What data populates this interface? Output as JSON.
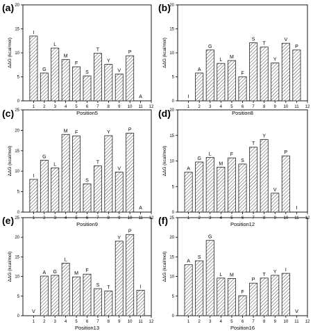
{
  "chart_data": [
    {
      "type": "bar",
      "panel_label": "(a)",
      "xlabel": "Position5",
      "ylabel": "ΔΔG (kcal/mol)",
      "x": [
        1,
        2,
        3,
        4,
        5,
        6,
        7,
        8,
        9,
        10,
        11
      ],
      "labels": [
        "I",
        "G",
        "L",
        "M",
        "F",
        "S",
        "T",
        "Y",
        "V",
        "P",
        "A"
      ],
      "values": [
        13.5,
        5.8,
        11.0,
        8.6,
        7.1,
        5.2,
        9.9,
        7.6,
        5.6,
        9.4,
        0
      ],
      "xlim": [
        0,
        12
      ],
      "ylim": [
        0,
        20
      ],
      "xticks": [
        1,
        2,
        3,
        4,
        5,
        6,
        7,
        8,
        9,
        10,
        11,
        12
      ],
      "yticks": [
        0,
        5,
        10,
        15,
        20
      ]
    },
    {
      "type": "bar",
      "panel_label": "(b)",
      "xlabel": "Position8",
      "ylabel": "ΔΔG (kcal/mol)",
      "x": [
        1,
        2,
        3,
        4,
        5,
        6,
        7,
        8,
        9,
        10,
        11
      ],
      "labels": [
        "I",
        "A",
        "G",
        "L",
        "M",
        "F",
        "S",
        "T",
        "Y",
        "V",
        "P"
      ],
      "values": [
        0,
        5.8,
        10.6,
        7.8,
        8.4,
        5.0,
        12.1,
        11.2,
        7.9,
        12.0,
        10.6
      ],
      "xlim": [
        0,
        12
      ],
      "ylim": [
        0,
        20
      ],
      "xticks": [
        1,
        2,
        3,
        4,
        5,
        6,
        7,
        8,
        9,
        10,
        11,
        12
      ],
      "yticks": [
        0,
        5,
        10,
        15,
        20
      ]
    },
    {
      "type": "bar",
      "panel_label": "(c)",
      "xlabel": "Position9",
      "ylabel": "ΔΔG (kcal/mol)",
      "x": [
        1,
        2,
        3,
        4,
        5,
        6,
        7,
        8,
        9,
        10,
        11
      ],
      "labels": [
        "I",
        "G",
        "L",
        "M",
        "F",
        "S",
        "T",
        "Y",
        "V",
        "P",
        "A"
      ],
      "values": [
        8.0,
        12.7,
        10.8,
        19.0,
        18.6,
        6.9,
        11.3,
        18.7,
        9.8,
        19.3,
        0
      ],
      "xlim": [
        0,
        12
      ],
      "ylim": [
        0,
        25
      ],
      "xticks": [
        1,
        2,
        3,
        4,
        5,
        6,
        7,
        8,
        9,
        10,
        11,
        12
      ],
      "yticks": [
        0,
        5,
        10,
        15,
        20,
        25
      ]
    },
    {
      "type": "bar",
      "panel_label": "(d)",
      "xlabel": "Position12",
      "ylabel": "ΔΔG (kcal/mol)",
      "x": [
        1,
        2,
        3,
        4,
        5,
        6,
        7,
        8,
        9,
        10,
        11
      ],
      "labels": [
        "A",
        "G",
        "L",
        "M",
        "F",
        "S",
        "T",
        "Y",
        "V",
        "P",
        "I"
      ],
      "values": [
        7.8,
        9.8,
        10.7,
        8.8,
        10.6,
        9.4,
        12.7,
        14.2,
        3.7,
        11.0,
        0
      ],
      "xlim": [
        0,
        12
      ],
      "ylim": [
        0,
        20
      ],
      "xticks": [
        1,
        2,
        3,
        4,
        5,
        6,
        7,
        8,
        9,
        10,
        11,
        12
      ],
      "yticks": [
        0,
        5,
        10,
        15,
        20
      ]
    },
    {
      "type": "bar",
      "panel_label": "(e)",
      "xlabel": "Position13",
      "ylabel": "ΔΔG (kcal/mol)",
      "x": [
        1,
        2,
        3,
        4,
        5,
        6,
        7,
        8,
        9,
        10,
        11
      ],
      "labels": [
        "V",
        "A",
        "G",
        "L",
        "M",
        "F",
        "S",
        "T",
        "Y",
        "P",
        "I"
      ],
      "values": [
        0,
        10.1,
        10.3,
        13.4,
        9.9,
        10.6,
        6.9,
        6.3,
        19.0,
        20.7,
        6.5
      ],
      "xlim": [
        0,
        12
      ],
      "ylim": [
        0,
        25
      ],
      "xticks": [
        1,
        2,
        3,
        4,
        5,
        6,
        7,
        8,
        9,
        10,
        11,
        12
      ],
      "yticks": [
        0,
        5,
        10,
        15,
        20,
        25
      ]
    },
    {
      "type": "bar",
      "panel_label": "(f)",
      "xlabel": "Position16",
      "ylabel": "ΔΔG (kcal/mol)",
      "x": [
        1,
        2,
        3,
        4,
        5,
        6,
        7,
        8,
        9,
        10,
        11
      ],
      "labels": [
        "A",
        "S",
        "G",
        "L",
        "M",
        "F",
        "P",
        "T",
        "Y",
        "I",
        "V"
      ],
      "values": [
        13.0,
        14.0,
        19.2,
        9.6,
        9.5,
        5.1,
        8.3,
        9.6,
        10.3,
        10.8,
        0
      ],
      "xlim": [
        0,
        12
      ],
      "ylim": [
        0,
        25
      ],
      "xticks": [
        1,
        2,
        3,
        4,
        5,
        6,
        7,
        8,
        9,
        10,
        11,
        12
      ],
      "yticks": [
        0,
        5,
        10,
        15,
        20,
        25
      ]
    }
  ]
}
